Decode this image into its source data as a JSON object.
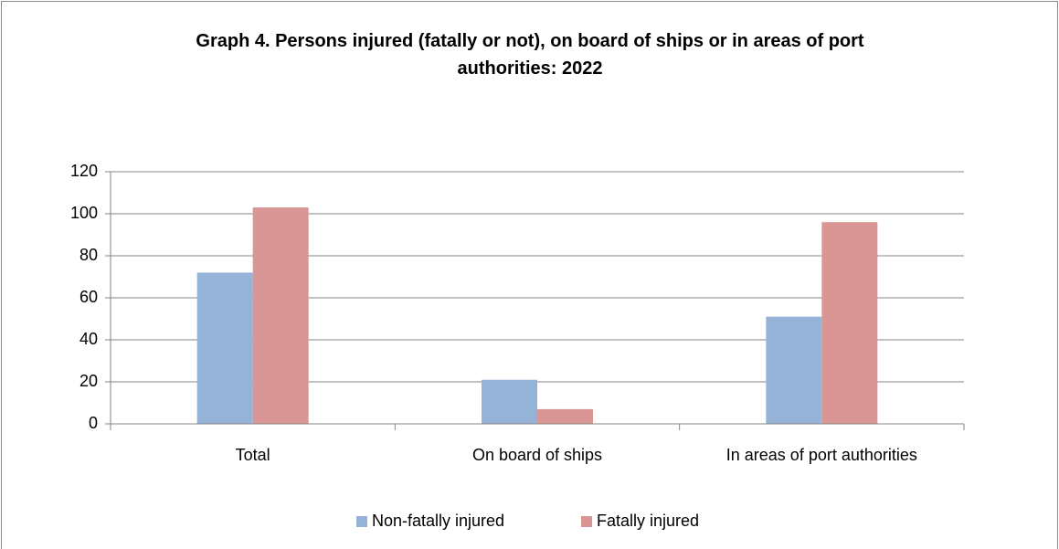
{
  "chart_data": {
    "type": "bar",
    "title": "Graph 4. Persons injured (fatally or not), on board of ships or in areas of port authorities: 2022",
    "categories": [
      "Total",
      "On board of ships",
      "In areas of port authorities"
    ],
    "series": [
      {
        "name": "Non-fatally injured",
        "color": "#95b3d7",
        "values": [
          72,
          21,
          51
        ]
      },
      {
        "name": "Fatally injured",
        "color": "#d99694",
        "values": [
          103,
          7,
          96
        ]
      }
    ],
    "ylim": [
      0,
      120
    ],
    "yticks": [
      0,
      20,
      40,
      60,
      80,
      100,
      120
    ],
    "grid": true,
    "legend": "bottom"
  }
}
